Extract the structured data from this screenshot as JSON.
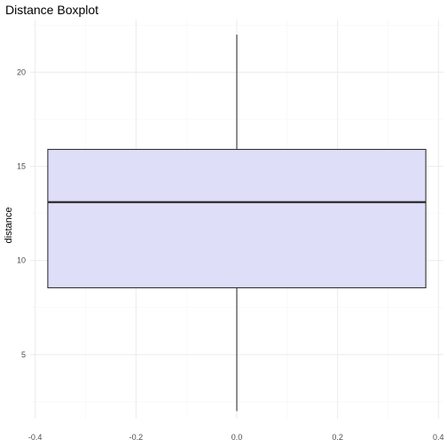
{
  "chart_data": {
    "type": "boxplot",
    "title": "Distance Boxplot",
    "xlabel": "",
    "ylabel": "distance",
    "xlim": [
      -0.41,
      0.41
    ],
    "ylim": [
      1.6,
      22.8
    ],
    "x_ticks": [
      -0.4,
      -0.2,
      0.0,
      0.2,
      0.4
    ],
    "x_tick_labels": [
      "-0.4",
      "-0.2",
      "0.0",
      "0.2",
      "0.4"
    ],
    "y_ticks": [
      5,
      10,
      15,
      20
    ],
    "y_tick_labels": [
      "5",
      "10",
      "15",
      "20"
    ],
    "grid": true,
    "box": {
      "x_left": -0.375,
      "x_right": 0.375,
      "min": 2,
      "q1": 8.55,
      "median": 13.1,
      "q3": 15.9,
      "max": 22
    },
    "colors": {
      "box_fill": "#dedef9",
      "box_stroke": "#333333",
      "grid_major": "#ebebeb",
      "grid_minor": "#f5f5f5"
    }
  }
}
